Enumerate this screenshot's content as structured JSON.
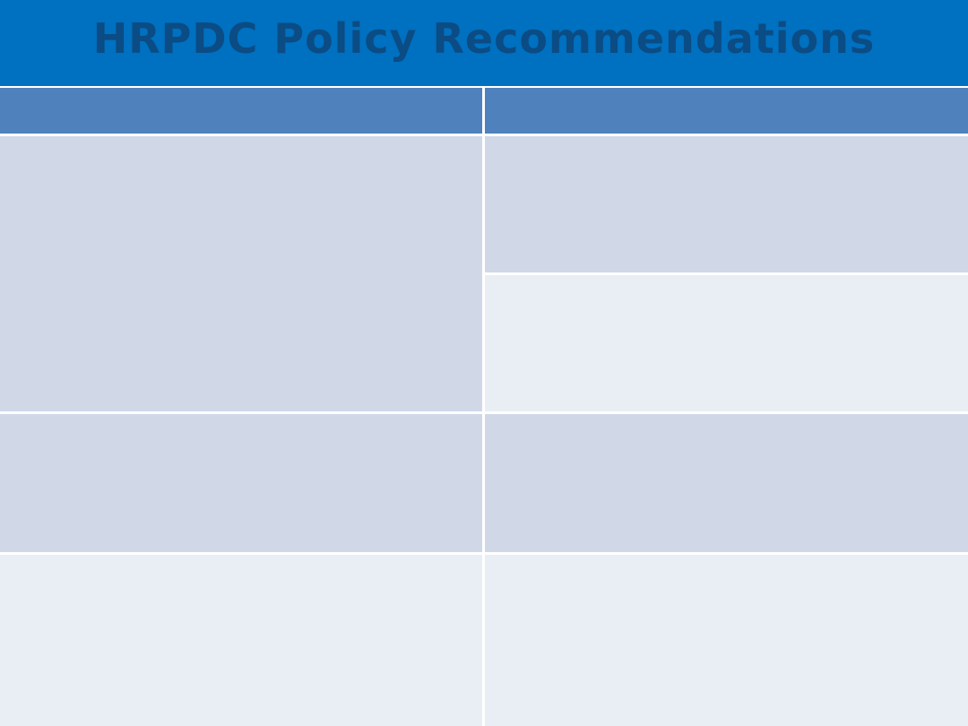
{
  "slide": {
    "title": "HRPDC Policy Recommendations"
  },
  "colors": {
    "title_band": "#0070c0",
    "title_text": "#0b4c84",
    "table_header": "#4f81bd",
    "row_dark": "#d0d8e8",
    "row_light": "#e9edf4"
  },
  "table": {
    "columns": 2,
    "header_row": [
      "",
      ""
    ],
    "body_rows": [
      {
        "left": "",
        "right": ""
      },
      {
        "left": "",
        "right": ""
      },
      {
        "left": "",
        "right": ""
      },
      {
        "left": "",
        "right": ""
      }
    ]
  }
}
